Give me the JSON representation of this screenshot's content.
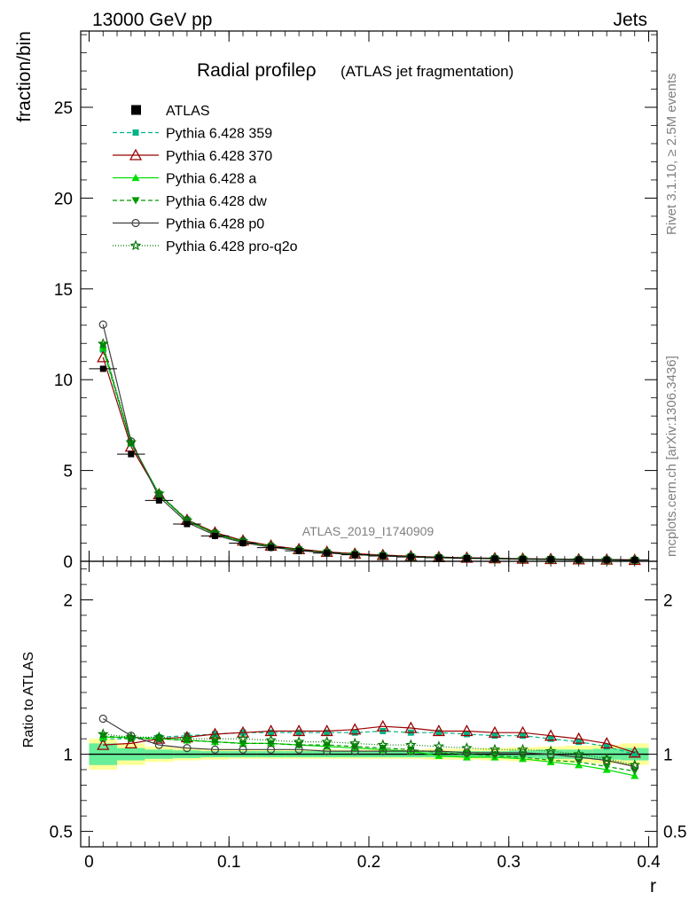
{
  "header": {
    "left": "13000 GeV pp",
    "right": "Jets"
  },
  "side": {
    "top": "Rivet 3.1.10, ≥ 2.5M events",
    "bottom": "mcplots.cern.ch [arXiv:1306.3436]"
  },
  "colors": {
    "atlas": "#000000",
    "p359": "#00b386",
    "p370": "#990000",
    "pa": "#00dd00",
    "pdw": "#009900",
    "pp0": "#404040",
    "pq2o": "#007700",
    "band_inner": "#66ee99",
    "band_outer": "#ffff99"
  },
  "chart_data": {
    "type": "line",
    "title": "Radial profileρ",
    "subtitle": "(ATLAS jet fragmentation)",
    "watermark": "ATLAS_2019_I1740909",
    "xlabel": "r",
    "ylabel": "fraction/bin",
    "ratio_ylabel": "Ratio to ATLAS",
    "xlim": [
      -0.006,
      0.406
    ],
    "ylim": [
      0,
      29.2
    ],
    "ratio_ylim": [
      0.4,
      2.25
    ],
    "x_ticks": [
      "0",
      "0.1",
      "0.2",
      "0.3",
      "0.4"
    ],
    "y_ticks": [
      "0",
      "5",
      "10",
      "15",
      "20",
      "25"
    ],
    "ratio_ticks": [
      "0.5",
      "1",
      "2"
    ],
    "x": [
      0.01,
      0.03,
      0.05,
      0.07,
      0.09,
      0.11,
      0.13,
      0.15,
      0.17,
      0.19,
      0.21,
      0.23,
      0.25,
      0.27,
      0.29,
      0.31,
      0.33,
      0.35,
      0.37,
      0.39
    ],
    "reference": {
      "name": "ATLAS",
      "values": [
        10.6,
        5.9,
        3.35,
        2.05,
        1.4,
        1.0,
        0.75,
        0.58,
        0.45,
        0.36,
        0.29,
        0.24,
        0.2,
        0.17,
        0.145,
        0.125,
        0.11,
        0.095,
        0.085,
        0.075
      ],
      "band_inner": [
        0.07,
        0.04,
        0.03,
        0.025,
        0.02,
        0.02,
        0.02,
        0.02,
        0.02,
        0.02,
        0.02,
        0.02,
        0.02,
        0.02,
        0.02,
        0.025,
        0.03,
        0.03,
        0.035,
        0.04
      ],
      "band_outer": [
        0.1,
        0.07,
        0.05,
        0.04,
        0.035,
        0.03,
        0.03,
        0.03,
        0.03,
        0.03,
        0.03,
        0.03,
        0.035,
        0.035,
        0.04,
        0.045,
        0.05,
        0.055,
        0.06,
        0.07
      ]
    },
    "series": [
      {
        "name": "Pythia 6.428 359",
        "color_key": "p359",
        "dash": "5,3",
        "marker": "square",
        "ratio": [
          1.1,
          1.1,
          1.11,
          1.12,
          1.13,
          1.14,
          1.14,
          1.14,
          1.14,
          1.14,
          1.15,
          1.14,
          1.14,
          1.13,
          1.12,
          1.12,
          1.1,
          1.08,
          1.05,
          1.0
        ]
      },
      {
        "name": "Pythia 6.428 370",
        "color_key": "p370",
        "dash": "",
        "marker": "triangle-open",
        "ratio": [
          1.06,
          1.07,
          1.1,
          1.11,
          1.13,
          1.14,
          1.15,
          1.15,
          1.15,
          1.16,
          1.18,
          1.17,
          1.15,
          1.15,
          1.14,
          1.14,
          1.12,
          1.1,
          1.07,
          1.01
        ]
      },
      {
        "name": "Pythia 6.428 a",
        "color_key": "pa",
        "dash": "",
        "marker": "triangle",
        "ratio": [
          1.11,
          1.11,
          1.1,
          1.09,
          1.08,
          1.07,
          1.07,
          1.06,
          1.05,
          1.04,
          1.03,
          1.02,
          0.99,
          0.98,
          0.98,
          0.97,
          0.95,
          0.93,
          0.9,
          0.86
        ]
      },
      {
        "name": "Pythia 6.428 dw",
        "color_key": "pdw",
        "dash": "5,3",
        "marker": "triangle-down",
        "ratio": [
          1.12,
          1.1,
          1.1,
          1.09,
          1.08,
          1.07,
          1.07,
          1.06,
          1.06,
          1.05,
          1.04,
          1.03,
          1.01,
          1.0,
          0.99,
          0.98,
          0.96,
          0.95,
          0.92,
          0.89
        ]
      },
      {
        "name": "Pythia 6.428 p0",
        "color_key": "pp0",
        "dash": "",
        "marker": "circle-open",
        "ratio": [
          1.23,
          1.12,
          1.06,
          1.04,
          1.03,
          1.03,
          1.03,
          1.03,
          1.02,
          1.02,
          1.02,
          1.02,
          1.02,
          1.01,
          1.01,
          1.01,
          1.0,
          0.98,
          0.96,
          0.92
        ]
      },
      {
        "name": "Pythia 6.428 pro-q2o",
        "color_key": "pq2o",
        "dash": "1,2",
        "marker": "star",
        "ratio": [
          1.13,
          1.11,
          1.11,
          1.1,
          1.1,
          1.1,
          1.09,
          1.08,
          1.08,
          1.07,
          1.06,
          1.06,
          1.05,
          1.04,
          1.03,
          1.03,
          1.02,
          1.0,
          0.97,
          0.93
        ]
      }
    ]
  }
}
